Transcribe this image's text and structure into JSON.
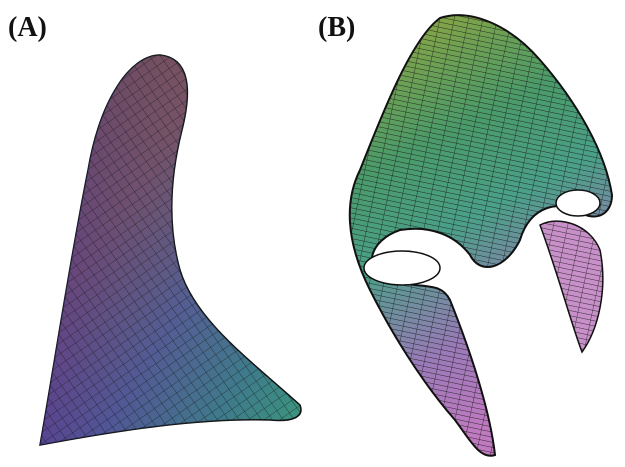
{
  "panels": [
    {
      "label": "(A)"
    },
    {
      "label": "(B)"
    }
  ]
}
